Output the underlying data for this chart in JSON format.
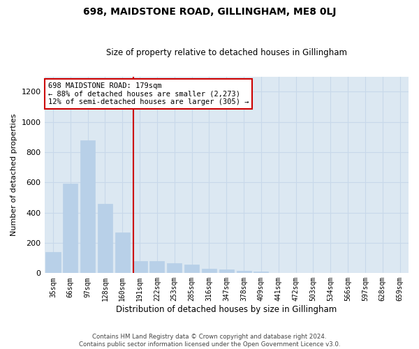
{
  "title1": "698, MAIDSTONE ROAD, GILLINGHAM, ME8 0LJ",
  "title2": "Size of property relative to detached houses in Gillingham",
  "xlabel": "Distribution of detached houses by size in Gillingham",
  "ylabel": "Number of detached properties",
  "categories": [
    "35sqm",
    "66sqm",
    "97sqm",
    "128sqm",
    "160sqm",
    "191sqm",
    "222sqm",
    "253sqm",
    "285sqm",
    "316sqm",
    "347sqm",
    "378sqm",
    "409sqm",
    "441sqm",
    "472sqm",
    "503sqm",
    "534sqm",
    "566sqm",
    "597sqm",
    "628sqm",
    "659sqm"
  ],
  "values": [
    140,
    590,
    880,
    460,
    270,
    80,
    80,
    65,
    55,
    30,
    25,
    15,
    10,
    0,
    0,
    0,
    0,
    0,
    0,
    0,
    0
  ],
  "bar_color": "#b8d0e8",
  "bar_edgecolor": "#b8d0e8",
  "grid_color": "#c8d8ea",
  "bg_color": "#dce8f2",
  "vline_x": 4.62,
  "vline_color": "#cc0000",
  "annotation_text": "698 MAIDSTONE ROAD: 179sqm\n← 88% of detached houses are smaller (2,273)\n12% of semi-detached houses are larger (305) →",
  "annotation_box_color": "#ffffff",
  "annotation_border_color": "#cc0000",
  "footer1": "Contains HM Land Registry data © Crown copyright and database right 2024.",
  "footer2": "Contains public sector information licensed under the Open Government Licence v3.0.",
  "ylim": [
    0,
    1300
  ],
  "yticks": [
    0,
    200,
    400,
    600,
    800,
    1000,
    1200
  ]
}
